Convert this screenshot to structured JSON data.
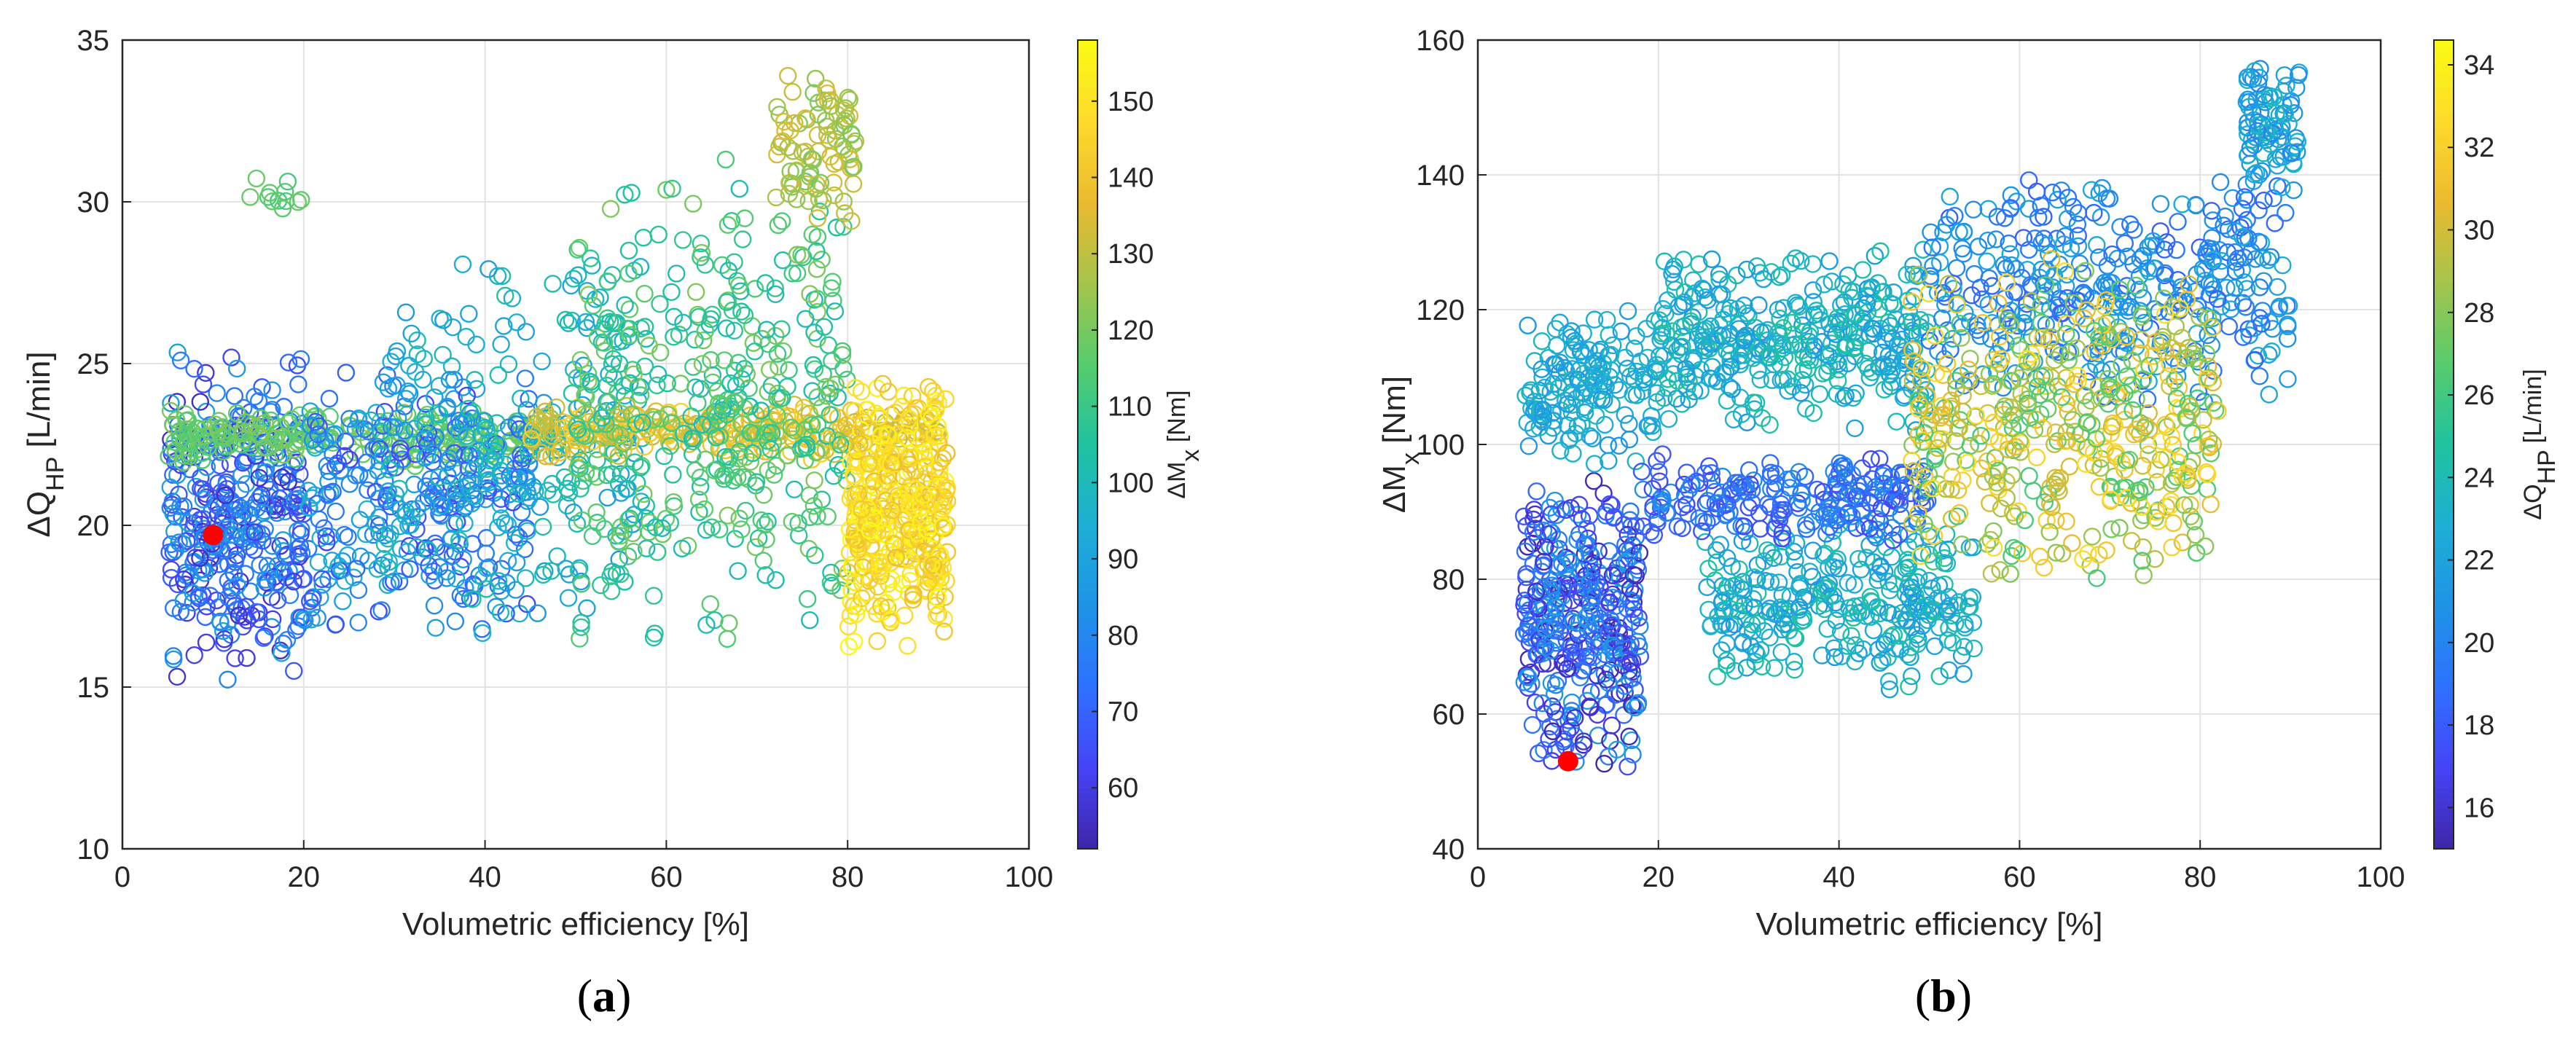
{
  "figure": {
    "captions": [
      {
        "open": "(",
        "letter": "a",
        "close": ")"
      },
      {
        "open": "(",
        "letter": "b",
        "close": ")"
      }
    ]
  },
  "colors": {
    "axis": "#262626",
    "grid": "#e3e3e3",
    "highlight": "#ff0000",
    "colormap": [
      "#3e26a8",
      "#4743f6",
      "#2f70ff",
      "#1e93e7",
      "#1eaed6",
      "#1fc2a1",
      "#56cc6e",
      "#a4c44c",
      "#eaba30",
      "#fdda2b",
      "#f9fb15"
    ]
  },
  "chart_data": [
    {
      "type": "scatter",
      "panel": "a",
      "title": "",
      "xlabel": "Volumetric efficiency [%]",
      "ylabel": {
        "main": "ΔQ",
        "sub": "HP",
        "unit": " [L/min]"
      },
      "xlim": [
        0,
        100
      ],
      "ylim": [
        10,
        35
      ],
      "xticks": [
        0,
        20,
        40,
        60,
        80,
        100
      ],
      "yticks": [
        10,
        15,
        20,
        25,
        30,
        35
      ],
      "grid": true,
      "marker": "open-circle",
      "colorbar": {
        "label": {
          "main": "ΔM",
          "sub": "x",
          "unit": " [Nm]"
        },
        "range": [
          52,
          158
        ],
        "ticks": [
          60,
          70,
          80,
          90,
          100,
          110,
          120,
          130,
          140,
          150
        ]
      },
      "highlight_point": {
        "x": 10,
        "y": 19.7
      },
      "clusters": [
        {
          "x_range": [
            5,
            20
          ],
          "y_range": [
            15,
            25.5
          ],
          "count": 380,
          "color_range": [
            55,
            90
          ]
        },
        {
          "x_range": [
            5,
            48
          ],
          "y_range": [
            21.8,
            23.6
          ],
          "count": 240,
          "color_range": [
            112,
            122
          ]
        },
        {
          "x_range": [
            20,
            45
          ],
          "y_range": [
            16.5,
            25
          ],
          "count": 300,
          "color_range": [
            62,
            98
          ]
        },
        {
          "x_range": [
            14,
            20
          ],
          "y_range": [
            29.5,
            31
          ],
          "count": 12,
          "color_range": [
            112,
            120
          ]
        },
        {
          "x_range": [
            28,
            58
          ],
          "y_range": [
            16.5,
            29
          ],
          "count": 220,
          "color_range": [
            85,
            105
          ]
        },
        {
          "x_range": [
            45,
            90
          ],
          "y_range": [
            22,
            23.8
          ],
          "count": 260,
          "color_range": [
            128,
            145
          ]
        },
        {
          "x_range": [
            50,
            80
          ],
          "y_range": [
            15.5,
            32
          ],
          "count": 420,
          "color_range": [
            100,
            122
          ]
        },
        {
          "x_range": [
            72,
            81
          ],
          "y_range": [
            29,
            34.6
          ],
          "count": 90,
          "color_range": [
            120,
            135
          ]
        },
        {
          "x_range": [
            80,
            91
          ],
          "y_range": [
            16,
            24.5
          ],
          "count": 380,
          "color_range": [
            138,
            158
          ]
        }
      ]
    },
    {
      "type": "scatter",
      "panel": "b",
      "title": "",
      "xlabel": "Volumetric efficiency [%]",
      "ylabel": {
        "main": "ΔM",
        "sub": "x",
        "unit": " [Nm]"
      },
      "xlim": [
        0,
        100
      ],
      "ylim": [
        40,
        160
      ],
      "xticks": [
        0,
        20,
        40,
        60,
        80,
        100
      ],
      "yticks": [
        40,
        60,
        80,
        100,
        120,
        140,
        160
      ],
      "grid": true,
      "marker": "open-circle",
      "colorbar": {
        "label": {
          "main": "ΔQ",
          "sub": "HP",
          "unit": " [L/min]"
        },
        "range": [
          15,
          34.6
        ],
        "ticks": [
          16,
          18,
          20,
          22,
          24,
          26,
          28,
          30,
          32,
          34
        ]
      },
      "highlight_point": {
        "x": 10,
        "y": 53
      },
      "clusters": [
        {
          "x_range": [
            5,
            18
          ],
          "y_range": [
            52,
            96
          ],
          "count": 380,
          "color_range": [
            15,
            22
          ]
        },
        {
          "x_range": [
            5,
            20
          ],
          "y_range": [
            96,
            121
          ],
          "count": 160,
          "color_range": [
            21,
            24
          ]
        },
        {
          "x_range": [
            20,
            50
          ],
          "y_range": [
            102,
            130
          ],
          "count": 380,
          "color_range": [
            21,
            25
          ]
        },
        {
          "x_range": [
            25,
            55
          ],
          "y_range": [
            62,
            90
          ],
          "count": 300,
          "color_range": [
            21,
            25
          ]
        },
        {
          "x_range": [
            18,
            50
          ],
          "y_range": [
            85,
            99
          ],
          "count": 220,
          "color_range": [
            17,
            21
          ]
        },
        {
          "x_range": [
            50,
            90
          ],
          "y_range": [
            105,
            142
          ],
          "count": 380,
          "color_range": [
            18,
            23
          ]
        },
        {
          "x_range": [
            48,
            82
          ],
          "y_range": [
            78,
            128
          ],
          "count": 460,
          "color_range": [
            26,
            33
          ]
        },
        {
          "x_range": [
            85,
            91
          ],
          "y_range": [
            135,
            158
          ],
          "count": 90,
          "color_range": [
            20,
            24
          ]
        }
      ]
    }
  ]
}
